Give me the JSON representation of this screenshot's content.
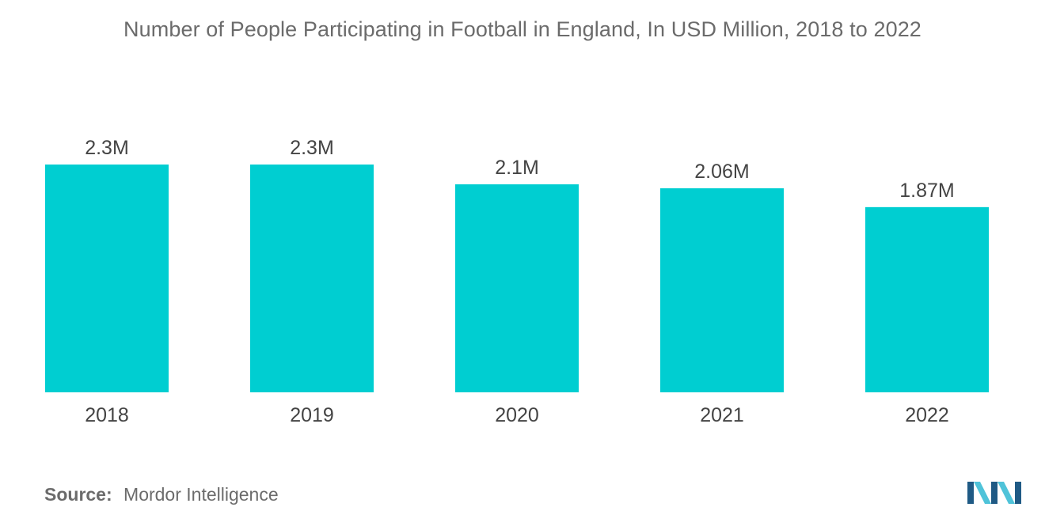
{
  "title": "Number of People Participating in Football in England, In USD Million, 2018 to 2022",
  "source": {
    "label": "Source:",
    "value": "Mordor Intelligence"
  },
  "colors": {
    "bar": "#00CED1",
    "text": "#555555",
    "logo_dark": "#1f5a85",
    "logo_light": "#4fc3d9"
  },
  "logo": {
    "icon": "mordor-intelligence-logo"
  },
  "chart_data": {
    "type": "bar",
    "categories": [
      "2018",
      "2019",
      "2020",
      "2021",
      "2022"
    ],
    "values": [
      2.3,
      2.3,
      2.1,
      2.06,
      1.87
    ],
    "data_labels": [
      "2.3M",
      "2.3M",
      "2.1M",
      "2.06M",
      "1.87M"
    ],
    "xlabel": "",
    "ylabel": "",
    "ylim": [
      0,
      2.3
    ],
    "grid": false,
    "legend": "none"
  }
}
